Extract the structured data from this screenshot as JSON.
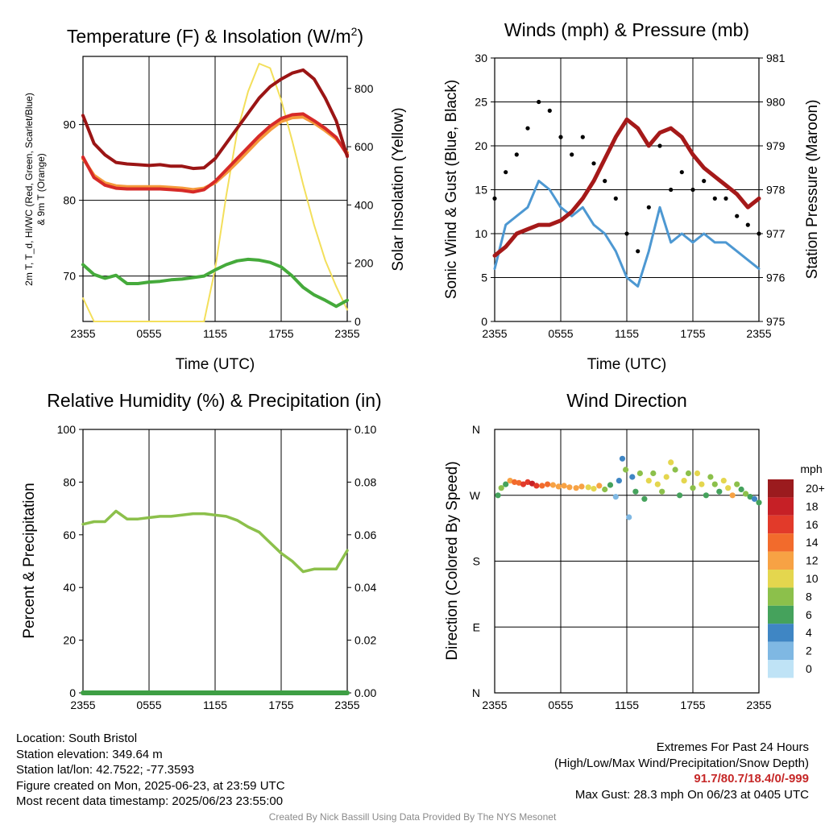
{
  "panels": {
    "temperature": {
      "title_main": "Temperature (F) & Insolation (W/m",
      "title_sup": "2",
      "title_end": ")",
      "y_left_label_line1": "2m T, T_d, HI/WC (Red, Green, Scarlet/Blue)",
      "y_left_label_line2": "& 9m T (Orange)",
      "y_right_label": "Solar Insolation (Yellow)",
      "x_label": "Time (UTC)"
    },
    "winds": {
      "title": "Winds (mph) & Pressure (mb)",
      "y_left_label": "Sonic Wind & Gust (Blue, Black)",
      "y_right_label": "Station Pressure (Maroon)",
      "x_label": "Time (UTC)"
    },
    "humidity": {
      "title": "Relative Humidity (%) & Precipitation (in)",
      "y_left_label": "Percent & Precipitation"
    },
    "direction": {
      "title": "Wind Direction",
      "y_left_label": "Direction (Colored By Speed)",
      "legend_unit": "mph",
      "legend_labels": [
        "20+",
        "18",
        "16",
        "14",
        "12",
        "10",
        "8",
        "6",
        "4",
        "2",
        "0"
      ],
      "legend_colors": [
        "#9b1b1e",
        "#c62026",
        "#e23a2a",
        "#f26b2c",
        "#f7a244",
        "#e4d64e",
        "#8cc04b",
        "#45a25c",
        "#3f86c4",
        "#7fb8e3",
        "#bfe3f6"
      ]
    }
  },
  "colors": {
    "temperature_2m": "#d62a28",
    "temperature_9m": "#f59a3c",
    "heat_index": "#9b1515",
    "dewpoint": "#45aa3b",
    "insolation": "#f3df5b",
    "wind": "#4d98d2",
    "gust": "#000000",
    "pressure": "#a51919",
    "humidity": "#8cc04b",
    "precipitation": "#3e9f44"
  },
  "footer": {
    "location": "Location: South Bristol",
    "elevation": "Station elevation: 349.64 m",
    "latlon": "Station lat/lon: 42.7522; -77.3593",
    "created": "Figure created on Mon, 2025-06-23, at 23:59 UTC",
    "recent": "Most recent data timestamp: 2025/06/23 23:55:00",
    "extremes_title": "Extremes For Past 24 Hours",
    "extremes_sub": "(High/Low/Max Wind/Precipitation/Snow Depth)",
    "extremes_values": "91.7/80.7/18.4/0/-999",
    "max_gust": "Max Gust: 28.3 mph On 06/23 at 0405 UTC",
    "credit": "Created By Nick Bassill Using Data Provided By The NYS Mesonet"
  },
  "chart_data": [
    {
      "type": "line",
      "title": "Temperature (F) & Insolation (W/m2)",
      "xlabel": "Time (UTC)",
      "ylabel": "2m T, Td, HI/WC (Red, Green, Scarlet/Blue) & 9m T (Orange)",
      "ylabel_right": "Solar Insolation (Yellow)",
      "x_ticks": [
        "2355",
        "0555",
        "1155",
        "1755",
        "2355"
      ],
      "ylim": [
        64,
        99
      ],
      "y_ticks": [
        70,
        80,
        90
      ],
      "ylim_right": [
        0,
        910
      ],
      "y_ticks_right": [
        0,
        200,
        400,
        600,
        800
      ],
      "grid": true,
      "x_hours": [
        0,
        1,
        2,
        3,
        4,
        5,
        6,
        7,
        8,
        9,
        10,
        11,
        12,
        13,
        14,
        15,
        16,
        17,
        18,
        19,
        20,
        21,
        22,
        23,
        24
      ],
      "series": [
        {
          "name": "Heat Index",
          "axis": "left",
          "values": [
            91.2,
            87.5,
            86.0,
            85.0,
            84.8,
            84.7,
            84.6,
            84.7,
            84.5,
            84.5,
            84.2,
            84.3,
            85.5,
            87.5,
            89.5,
            91.5,
            93.5,
            95.0,
            96.0,
            96.8,
            97.2,
            96.0,
            93.5,
            90.5,
            85.8
          ]
        },
        {
          "name": "2m Temperature",
          "axis": "left",
          "values": [
            85.7,
            83.0,
            82.0,
            81.6,
            81.5,
            81.5,
            81.5,
            81.5,
            81.4,
            81.3,
            81.1,
            81.4,
            82.5,
            84.0,
            85.5,
            87.0,
            88.5,
            89.8,
            90.8,
            91.3,
            91.4,
            90.5,
            89.5,
            88.3,
            86.0
          ]
        },
        {
          "name": "9m Temperature",
          "axis": "left",
          "values": [
            85.5,
            83.3,
            82.3,
            81.9,
            81.8,
            81.8,
            81.8,
            81.8,
            81.7,
            81.6,
            81.4,
            81.6,
            82.3,
            83.6,
            85.0,
            86.5,
            88.0,
            89.3,
            90.4,
            90.9,
            91.0,
            90.2,
            89.2,
            88.1,
            86.3
          ]
        },
        {
          "name": "Dewpoint",
          "axis": "left",
          "values": [
            71.5,
            70.2,
            69.7,
            70.1,
            69.0,
            69.0,
            69.2,
            69.3,
            69.5,
            69.6,
            69.8,
            70.0,
            70.8,
            71.5,
            72.0,
            72.2,
            72.1,
            71.8,
            71.2,
            70.0,
            68.5,
            67.5,
            66.8,
            66.0,
            66.8
          ]
        },
        {
          "name": "Solar Insolation",
          "axis": "right",
          "values": [
            80,
            0,
            0,
            0,
            0,
            0,
            0,
            0,
            0,
            0,
            0,
            0,
            180,
            430,
            650,
            790,
            885,
            870,
            760,
            620,
            470,
            330,
            210,
            120,
            40
          ]
        }
      ]
    },
    {
      "type": "line",
      "title": "Winds (mph) & Pressure (mb)",
      "xlabel": "Time (UTC)",
      "ylabel": "Sonic Wind & Gust (Blue, Black)",
      "ylabel_right": "Station Pressure (Maroon)",
      "x_ticks": [
        "2355",
        "0555",
        "1155",
        "1755",
        "2355"
      ],
      "ylim": [
        0,
        30
      ],
      "y_ticks": [
        0,
        5,
        10,
        15,
        20,
        25,
        30
      ],
      "ylim_right": [
        975,
        981
      ],
      "y_ticks_right": [
        975,
        976,
        977,
        978,
        979,
        980,
        981
      ],
      "grid": true,
      "x_hours": [
        0,
        1,
        2,
        3,
        4,
        5,
        6,
        7,
        8,
        9,
        10,
        11,
        12,
        13,
        14,
        15,
        16,
        17,
        18,
        19,
        20,
        21,
        22,
        23,
        24
      ],
      "series": [
        {
          "name": "Sonic Wind",
          "axis": "left",
          "values": [
            6,
            11,
            12,
            13,
            16,
            15,
            13,
            12,
            13,
            11,
            10,
            8,
            5,
            4,
            8,
            13,
            9,
            10,
            9,
            10,
            9,
            9,
            8,
            7,
            6
          ]
        },
        {
          "name": "Gust",
          "axis": "left",
          "values": [
            14,
            17,
            19,
            22,
            25,
            24,
            21,
            19,
            21,
            18,
            16,
            14,
            10,
            8,
            13,
            20,
            15,
            17,
            15,
            16,
            14,
            14,
            12,
            11,
            10
          ]
        },
        {
          "name": "Station Pressure",
          "axis": "right",
          "values": [
            976.5,
            976.7,
            977.0,
            977.1,
            977.2,
            977.2,
            977.3,
            977.5,
            977.8,
            978.2,
            978.7,
            979.2,
            979.6,
            979.4,
            979.0,
            979.3,
            979.4,
            979.2,
            978.8,
            978.5,
            978.3,
            978.1,
            977.9,
            977.6,
            977.8
          ]
        }
      ]
    },
    {
      "type": "line",
      "title": "Relative Humidity (%) & Precipitation (in)",
      "ylabel": "Percent & Precipitation",
      "x_ticks": [
        "2355",
        "0555",
        "1155",
        "1755",
        "2355"
      ],
      "ylim": [
        0,
        100
      ],
      "y_ticks": [
        0,
        20,
        40,
        60,
        80,
        100
      ],
      "ylim_right": [
        0,
        0.1
      ],
      "y_ticks_right": [
        "0.00",
        "0.02",
        "0.04",
        "0.06",
        "0.08",
        "0.10"
      ],
      "grid": true,
      "x_hours": [
        0,
        1,
        2,
        3,
        4,
        5,
        6,
        7,
        8,
        9,
        10,
        11,
        12,
        13,
        14,
        15,
        16,
        17,
        18,
        19,
        20,
        21,
        22,
        23,
        24
      ],
      "series": [
        {
          "name": "Relative Humidity",
          "axis": "left",
          "values": [
            64,
            65,
            65,
            69,
            66,
            66,
            66.5,
            67,
            67,
            67.5,
            68,
            68,
            67.5,
            67,
            65.5,
            63,
            61,
            57,
            53,
            50,
            46,
            47,
            47,
            47,
            54
          ]
        },
        {
          "name": "Precipitation",
          "axis": "right",
          "values": [
            0,
            0,
            0,
            0,
            0,
            0,
            0,
            0,
            0,
            0,
            0,
            0,
            0,
            0,
            0,
            0,
            0,
            0,
            0,
            0,
            0,
            0,
            0,
            0,
            0
          ]
        }
      ]
    },
    {
      "type": "scatter",
      "title": "Wind Direction",
      "ylabel": "Direction (Colored By Speed)",
      "x_ticks": [
        "2355",
        "0555",
        "1155",
        "1755",
        "2355"
      ],
      "y_ticks": [
        "N",
        "W",
        "S",
        "E",
        "N"
      ],
      "ylim_degrees": [
        0,
        360
      ],
      "grid": true,
      "legend": "right",
      "points_hour_dir_speed": [
        [
          0.3,
          270,
          6
        ],
        [
          0.6,
          280,
          8
        ],
        [
          1.0,
          285,
          7
        ],
        [
          1.4,
          290,
          13
        ],
        [
          1.8,
          288,
          14
        ],
        [
          2.2,
          287,
          15
        ],
        [
          2.6,
          285,
          16
        ],
        [
          3.0,
          288,
          17
        ],
        [
          3.4,
          286,
          18
        ],
        [
          3.8,
          283,
          16
        ],
        [
          4.3,
          283,
          15
        ],
        [
          4.8,
          285,
          14
        ],
        [
          5.3,
          284,
          13
        ],
        [
          5.8,
          282,
          12
        ],
        [
          6.3,
          283,
          13
        ],
        [
          6.8,
          281,
          12
        ],
        [
          7.4,
          280,
          13
        ],
        [
          7.9,
          282,
          12
        ],
        [
          8.5,
          281,
          11
        ],
        [
          9.0,
          279,
          10
        ],
        [
          9.5,
          283,
          12
        ],
        [
          10.0,
          278,
          9
        ],
        [
          10.5,
          284,
          6
        ],
        [
          11.0,
          268,
          3
        ],
        [
          11.3,
          290,
          4
        ],
        [
          11.6,
          320,
          4
        ],
        [
          11.9,
          305,
          9
        ],
        [
          12.2,
          240,
          3
        ],
        [
          12.5,
          295,
          5
        ],
        [
          12.8,
          275,
          6
        ],
        [
          13.2,
          300,
          8
        ],
        [
          13.6,
          265,
          7
        ],
        [
          14.0,
          290,
          10
        ],
        [
          14.4,
          300,
          9
        ],
        [
          14.8,
          285,
          11
        ],
        [
          15.2,
          275,
          8
        ],
        [
          15.6,
          295,
          10
        ],
        [
          16.0,
          315,
          11
        ],
        [
          16.4,
          305,
          9
        ],
        [
          16.8,
          270,
          6
        ],
        [
          17.2,
          290,
          11
        ],
        [
          17.6,
          300,
          9
        ],
        [
          18.0,
          280,
          8
        ],
        [
          18.4,
          300,
          10
        ],
        [
          18.8,
          285,
          11
        ],
        [
          19.2,
          270,
          7
        ],
        [
          19.6,
          295,
          9
        ],
        [
          20.0,
          285,
          8
        ],
        [
          20.4,
          275,
          7
        ],
        [
          20.8,
          290,
          10
        ],
        [
          21.2,
          280,
          11
        ],
        [
          21.6,
          270,
          12
        ],
        [
          22.0,
          285,
          9
        ],
        [
          22.4,
          278,
          7
        ],
        [
          22.8,
          272,
          8
        ],
        [
          23.2,
          268,
          6
        ],
        [
          23.6,
          265,
          5
        ],
        [
          24.0,
          260,
          6
        ]
      ]
    }
  ]
}
